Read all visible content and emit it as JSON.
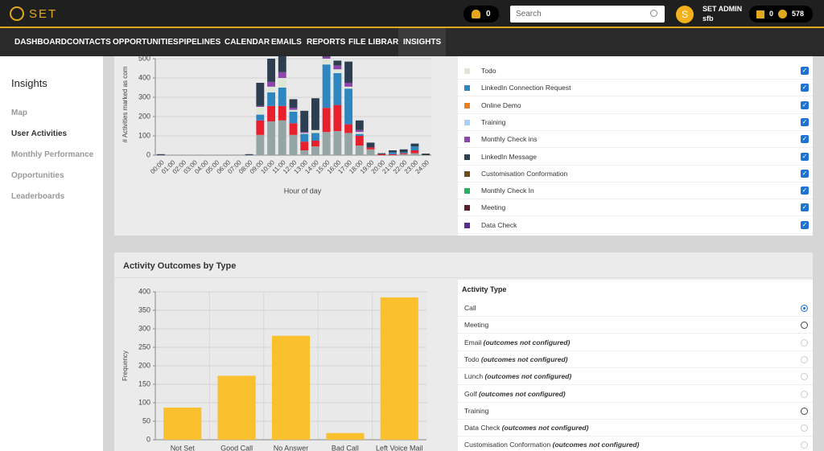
{
  "header": {
    "logo": "SET",
    "notifications": "0",
    "search_placeholder": "Search",
    "user_name": "SET ADMIN",
    "user_org": "sfb",
    "tasks": "0",
    "alerts": "578"
  },
  "nav": {
    "items": [
      "DASHBOARD",
      "CONTACTS",
      "OPPORTUNITIES",
      "PIPELINES",
      "CALENDAR",
      "EMAILS",
      "REPORTS",
      "FILE LIBRARY",
      "INSIGHTS"
    ],
    "active": 8
  },
  "sidebar": {
    "title": "Insights",
    "items": [
      "Map",
      "User Activities",
      "Monthly Performance",
      "Opportunities",
      "Leaderboards"
    ],
    "active": 1
  },
  "activity_filter": {
    "items": [
      {
        "label": "Todo",
        "color": "#dfe6d6",
        "checked": true
      },
      {
        "label": "LinkedIn Connection Request",
        "color": "#2e86c1",
        "checked": true
      },
      {
        "label": "Online Demo",
        "color": "#e67e22",
        "checked": true
      },
      {
        "label": "Training",
        "color": "#a9d0f5",
        "checked": true
      },
      {
        "label": "Monthly Check ins",
        "color": "#8e44ad",
        "checked": true
      },
      {
        "label": "LinkedIn Message",
        "color": "#2c3e50",
        "checked": true
      },
      {
        "label": "Customisation Conformation",
        "color": "#6e4b1f",
        "checked": true
      },
      {
        "label": "Monthly Check In",
        "color": "#27ae60",
        "checked": true
      },
      {
        "label": "Meeting",
        "color": "#5a1e2c",
        "checked": true
      },
      {
        "label": "Data Check",
        "color": "#5b2c8f",
        "checked": true
      }
    ]
  },
  "outcomes_panel": {
    "title": "Activity Outcomes by Type"
  },
  "activity_type": {
    "title": "Activity Type",
    "selected": 0,
    "items": [
      {
        "label": "Call"
      },
      {
        "label": "Meeting"
      },
      {
        "label": "Email",
        "note": "(outcomes not configured)"
      },
      {
        "label": "Todo",
        "note": "(outcomes not configured)"
      },
      {
        "label": "Lunch",
        "note": "(outcomes not configured)"
      },
      {
        "label": "Golf",
        "note": "(outcomes not configured)"
      },
      {
        "label": "Training"
      },
      {
        "label": "Data Check",
        "note": "(outcomes not configured)"
      },
      {
        "label": "Customisation Conformation",
        "note": "(outcomes not configured)"
      }
    ]
  },
  "chart_data": [
    {
      "type": "bar",
      "stacked": true,
      "ylabel": "# Activities marked as com",
      "xlabel": "Hour of day",
      "categories": [
        "00:00",
        "01:00",
        "02:00",
        "03:00",
        "04:00",
        "05:00",
        "06:00",
        "07:00",
        "08:00",
        "09:00",
        "10:00",
        "11:00",
        "12:00",
        "13:00",
        "14:00",
        "15:00",
        "16:00",
        "17:00",
        "18:00",
        "19:00",
        "20:00",
        "21:00",
        "22:00",
        "23:00",
        "24:00"
      ],
      "series": [
        {
          "color": "#95a5a6",
          "values": [
            0,
            0,
            0,
            0,
            0,
            0,
            0,
            0,
            0,
            105,
            175,
            180,
            105,
            25,
            45,
            120,
            125,
            115,
            50,
            30,
            0,
            0,
            5,
            10,
            0
          ]
        },
        {
          "color": "#e8202e",
          "values": [
            0,
            0,
            0,
            0,
            0,
            0,
            0,
            0,
            0,
            75,
            80,
            75,
            60,
            45,
            30,
            125,
            135,
            45,
            50,
            10,
            5,
            5,
            5,
            15,
            0
          ]
        },
        {
          "color": "#2e86c1",
          "values": [
            0,
            0,
            0,
            0,
            0,
            0,
            0,
            0,
            0,
            30,
            70,
            95,
            60,
            40,
            40,
            225,
            165,
            185,
            10,
            0,
            0,
            10,
            5,
            20,
            0
          ]
        },
        {
          "color": "#dfe6d6",
          "values": [
            0,
            0,
            0,
            0,
            0,
            0,
            0,
            0,
            0,
            40,
            30,
            50,
            10,
            5,
            15,
            30,
            20,
            10,
            10,
            0,
            0,
            0,
            0,
            0,
            0
          ]
        },
        {
          "color": "#8e44ad",
          "values": [
            0,
            0,
            0,
            0,
            0,
            0,
            0,
            0,
            0,
            5,
            25,
            30,
            10,
            5,
            0,
            10,
            20,
            20,
            10,
            0,
            0,
            0,
            0,
            0,
            0
          ]
        },
        {
          "color": "#2c3e50",
          "values": [
            5,
            0,
            0,
            0,
            0,
            0,
            0,
            0,
            5,
            120,
            120,
            100,
            45,
            110,
            165,
            30,
            25,
            110,
            50,
            25,
            5,
            10,
            15,
            15,
            8
          ]
        }
      ],
      "ylim": [
        0,
        500
      ],
      "yticks": [
        0,
        100,
        200,
        300,
        400,
        500
      ],
      "grid": true
    },
    {
      "type": "bar",
      "ylabel": "Frequency",
      "categories": [
        "Not Set",
        "Good Call",
        "No Answer",
        "Bad Call",
        "Left Voice Mail"
      ],
      "values": [
        87,
        173,
        281,
        18,
        385
      ],
      "color": "#fbc02d",
      "ylim": [
        0,
        400
      ],
      "yticks": [
        0,
        50,
        100,
        150,
        200,
        250,
        300,
        350,
        400
      ],
      "grid": true
    }
  ]
}
